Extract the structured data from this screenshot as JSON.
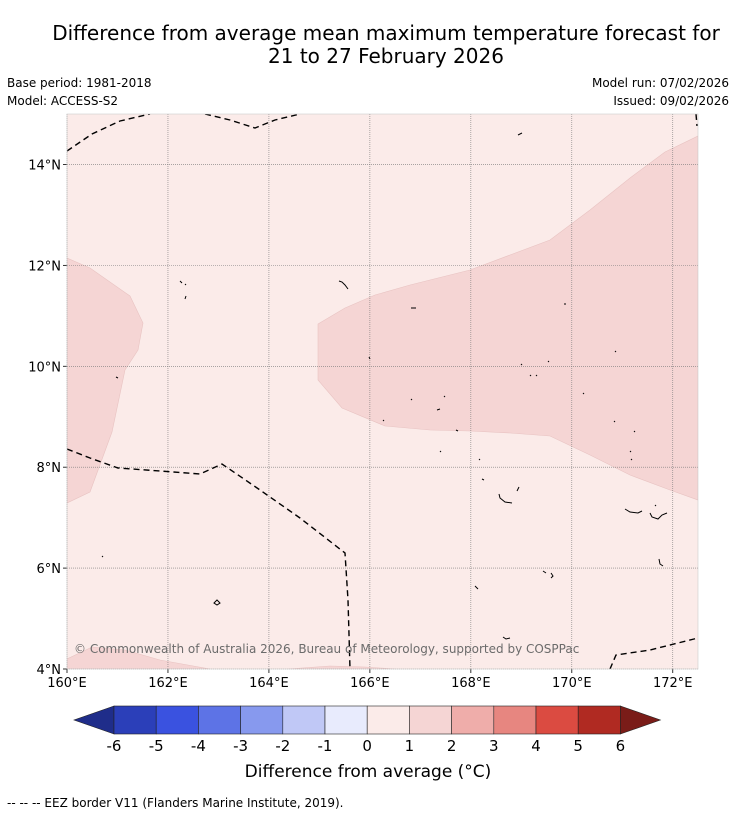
{
  "title": {
    "line1": "Difference from average mean maximum temperature forecast for",
    "line2": "21 to 27 February 2026"
  },
  "meta": {
    "base_period": "Base period: 1981-2018",
    "model": "Model: ACCESS-S2",
    "model_run": "Model run: 07/02/2026",
    "issued": "Issued: 09/02/2026"
  },
  "map": {
    "lat_labels": [
      "14°N",
      "12°N",
      "10°N",
      "8°N",
      "6°N",
      "4°N"
    ],
    "lat_values": [
      14,
      12,
      10,
      8,
      6,
      4
    ],
    "lon_labels": [
      "160°E",
      "162°E",
      "164°E",
      "166°E",
      "168°E",
      "170°E",
      "172°E"
    ],
    "lon_values": [
      160,
      162,
      164,
      166,
      168,
      170,
      172
    ],
    "lon_range": [
      160,
      172.5
    ],
    "lat_range": [
      4,
      15
    ],
    "copyright": "© Commonwealth of Australia 2026, Bureau of Meteorology, supported by COSPPac",
    "colors": {
      "background_anomaly": "#fbebe9",
      "positive_anomaly": "#f5d5d4",
      "gridline": "#777777",
      "coast": "#111111"
    }
  },
  "colorbar": {
    "ticks": [
      "-6",
      "-5",
      "-4",
      "-3",
      "-2",
      "-1",
      "0",
      "1",
      "2",
      "3",
      "4",
      "5",
      "6"
    ],
    "colors": [
      "#1f2d8a",
      "#2b3fb9",
      "#3a52e0",
      "#5d73e6",
      "#8799ee",
      "#c0c8f6",
      "#e8ebfd",
      "#fbebe9",
      "#f5d5d4",
      "#efadaa",
      "#e78680",
      "#db4b41",
      "#b02a22",
      "#7a1c18"
    ],
    "title": "Difference from average (°C)"
  },
  "footnote": "--  --  -- EEZ border V11 (Flanders Marine Institute, 2019)."
}
